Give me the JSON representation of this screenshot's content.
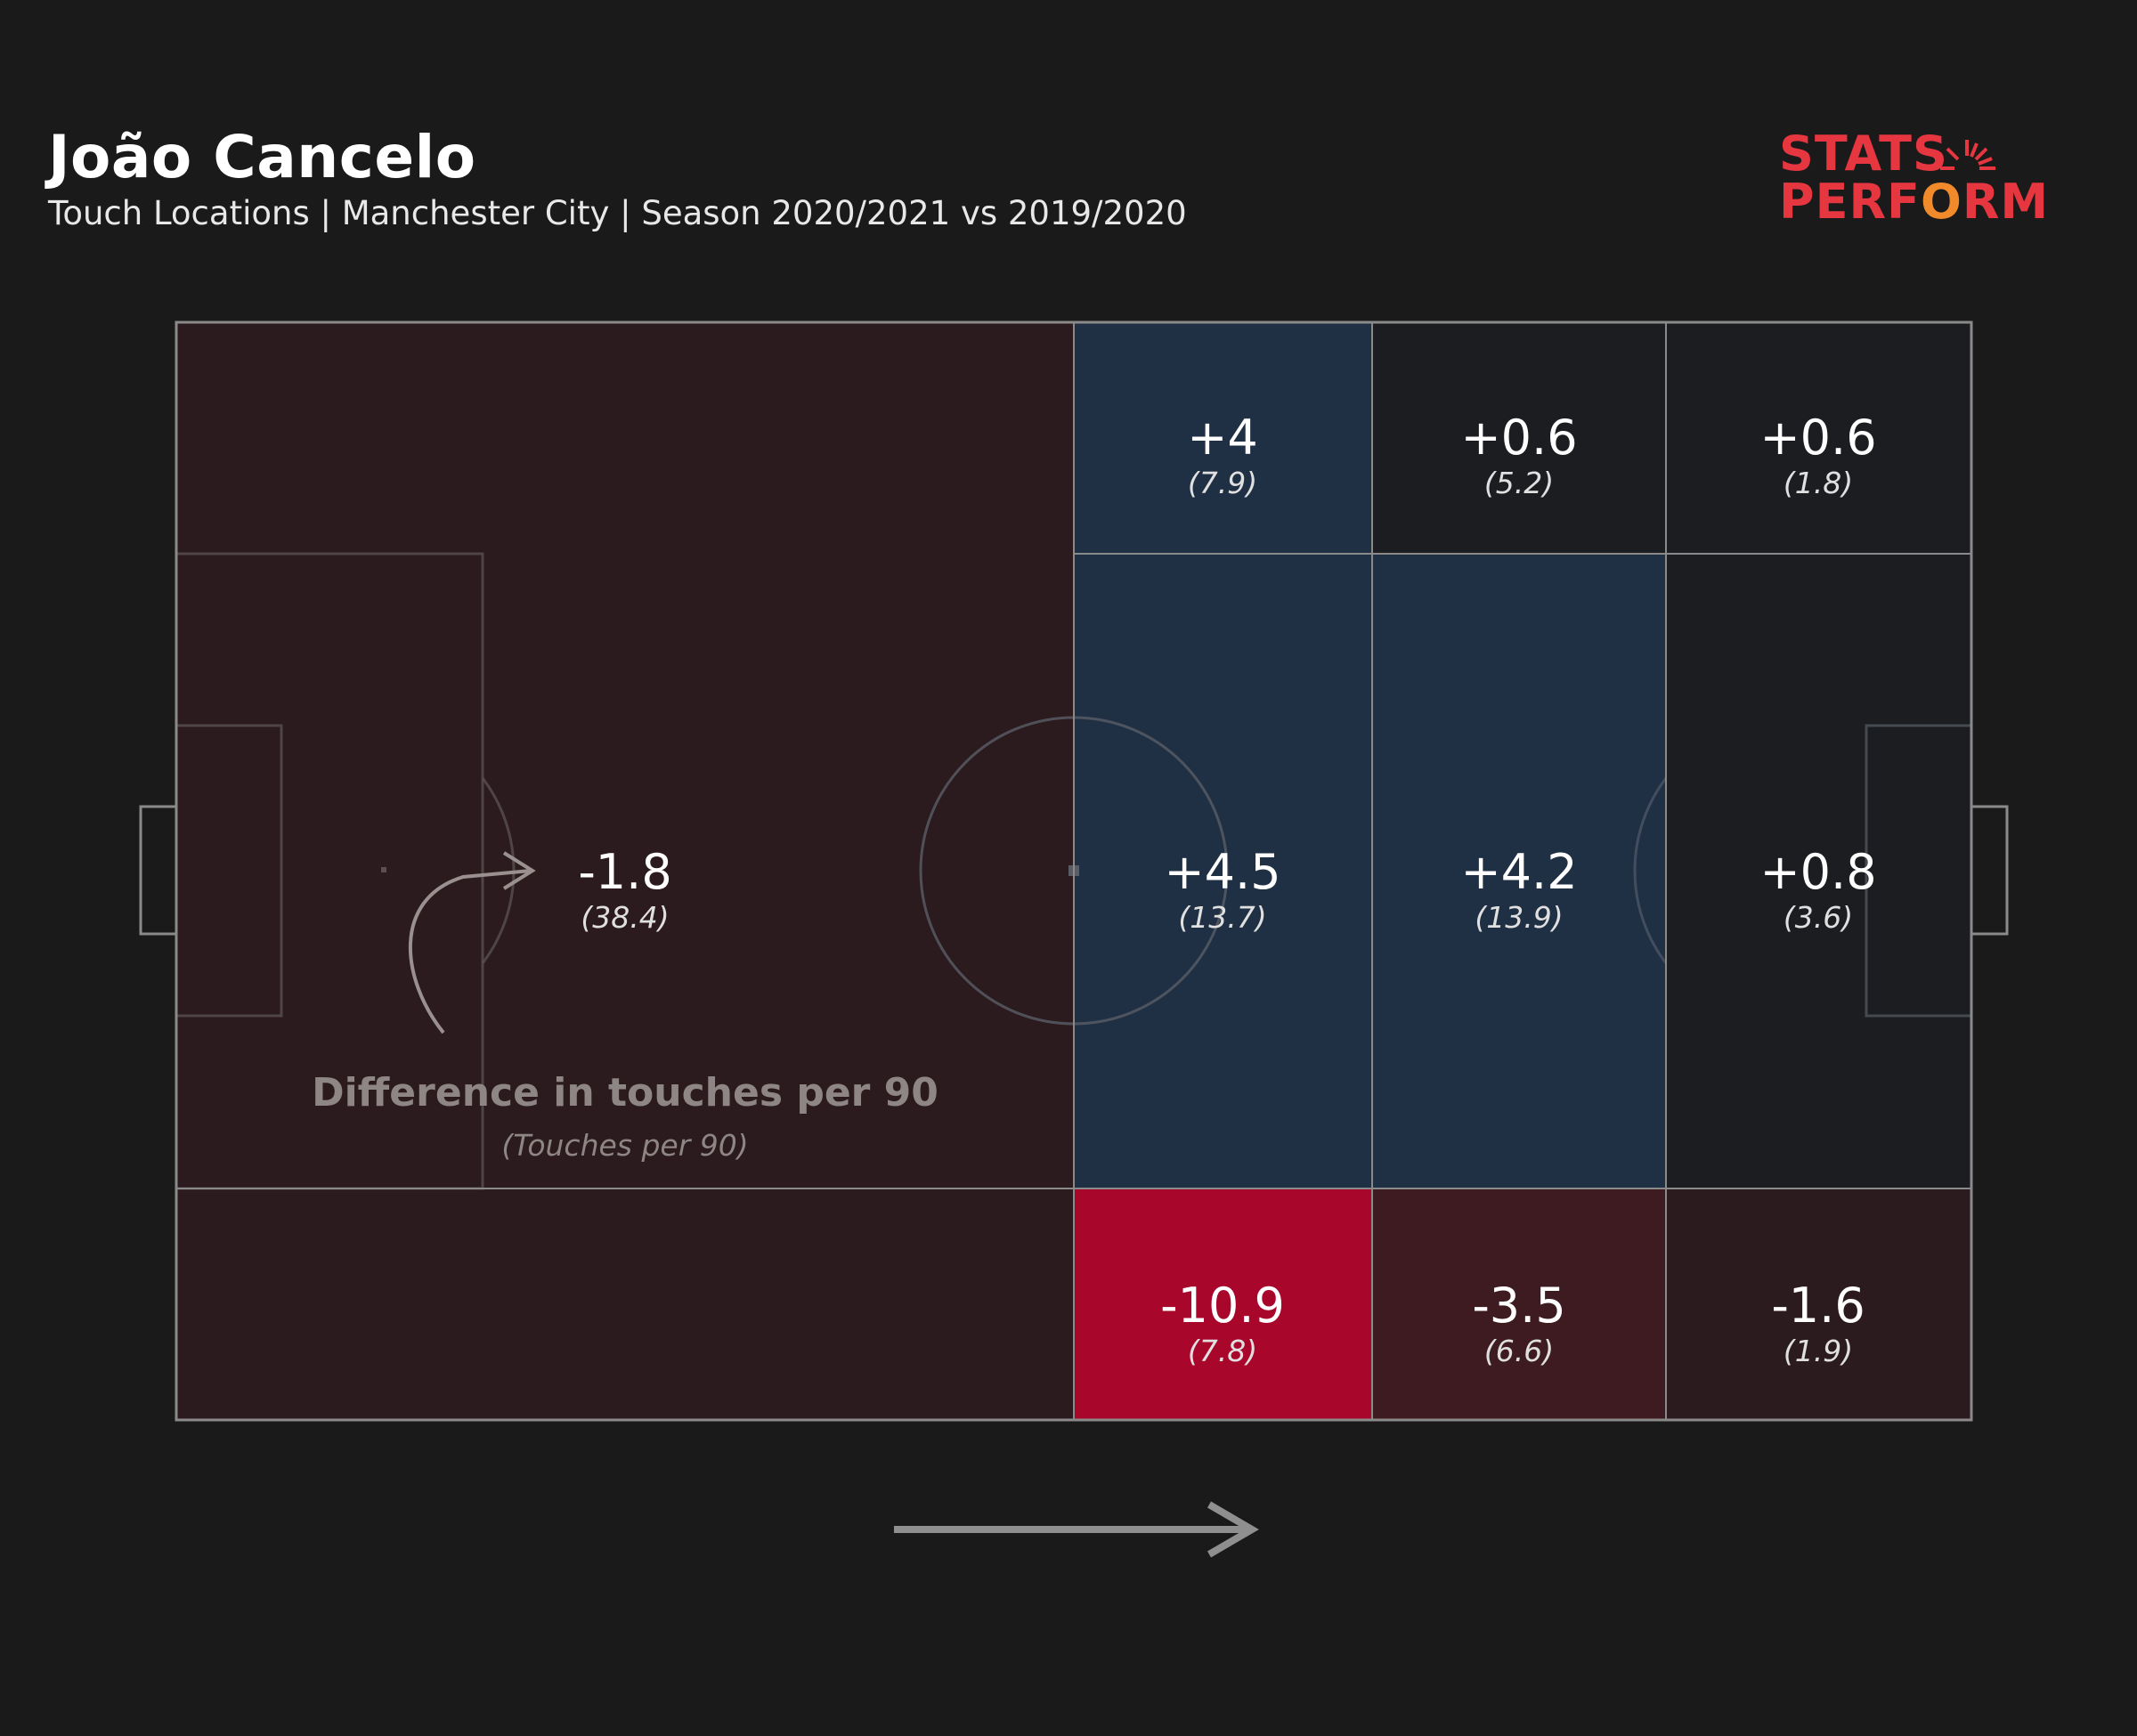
{
  "header": {
    "title": "João Cancelo",
    "subtitle": "Touch Locations | Manchester City | Season 2020/2021 vs 2019/2020"
  },
  "logo": {
    "line1": "STATS",
    "line2_a": "PERF",
    "line2_b": "O",
    "line2_c": "RM",
    "colors": {
      "red": "#e63640",
      "orange": "#f08a2a"
    }
  },
  "legend": {
    "main": "Difference in touches per 90",
    "sub": "(Touches per 90)"
  },
  "colors": {
    "background": "#1a1a1a",
    "increase": "#203044",
    "neutral": "#1c1d20",
    "decrease_small": "#2c1b1e",
    "decrease_medium": "#3e1b20",
    "decrease_large": "#a8062b",
    "lines": "#8a8a8a"
  },
  "chart_data": {
    "type": "heatmap",
    "title": "João Cancelo",
    "subtitle": "Touch Locations | Manchester City | Season 2020/2021 vs 2019/2020",
    "value_label": "Difference in touches per 90",
    "secondary_label": "(Touches per 90)",
    "attack_direction": "left-to-right",
    "cells": [
      {
        "zone": "own-half",
        "diff": "-1.8",
        "touches": "(38.4)",
        "diff_value": -1.8,
        "touches_value": 38.4,
        "color": "#2c1b1e"
      },
      {
        "zone": "mid-top",
        "diff": "+4",
        "touches": "(7.9)",
        "diff_value": 4,
        "touches_value": 7.9,
        "color": "#203044"
      },
      {
        "zone": "final-top",
        "diff": "+0.6",
        "touches": "(5.2)",
        "diff_value": 0.6,
        "touches_value": 5.2,
        "color": "#1c1d20"
      },
      {
        "zone": "box-top",
        "diff": "+0.6",
        "touches": "(1.8)",
        "diff_value": 0.6,
        "touches_value": 1.8,
        "color": "#1c1d20"
      },
      {
        "zone": "mid-center",
        "diff": "+4.5",
        "touches": "(13.7)",
        "diff_value": 4.5,
        "touches_value": 13.7,
        "color": "#203044"
      },
      {
        "zone": "final-center",
        "diff": "+4.2",
        "touches": "(13.9)",
        "diff_value": 4.2,
        "touches_value": 13.9,
        "color": "#203044"
      },
      {
        "zone": "box-center",
        "diff": "+0.8",
        "touches": "(3.6)",
        "diff_value": 0.8,
        "touches_value": 3.6,
        "color": "#1c1d20"
      },
      {
        "zone": "mid-bottom",
        "diff": "-10.9",
        "touches": "(7.8)",
        "diff_value": -10.9,
        "touches_value": 7.8,
        "color": "#a8062b"
      },
      {
        "zone": "final-bottom",
        "diff": "-3.5",
        "touches": "(6.6)",
        "diff_value": -3.5,
        "touches_value": 6.6,
        "color": "#3e1b20"
      },
      {
        "zone": "box-bottom",
        "diff": "-1.6",
        "touches": "(1.9)",
        "diff_value": -1.6,
        "touches_value": 1.9,
        "color": "#2c1b1e"
      }
    ]
  }
}
